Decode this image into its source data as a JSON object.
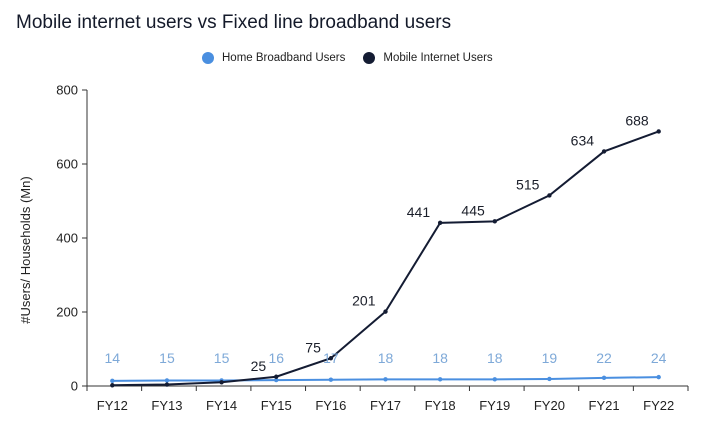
{
  "chart_data": {
    "type": "line",
    "title": "Mobile internet users vs Fixed line broadband users",
    "xlabel": "",
    "ylabel": "#Users/ Households (Mn)",
    "categories": [
      "FY12",
      "FY13",
      "FY14",
      "FY15",
      "FY16",
      "FY17",
      "FY18",
      "FY19",
      "FY20",
      "FY21",
      "FY22"
    ],
    "ylim": [
      0,
      800
    ],
    "yticks": [
      0,
      200,
      400,
      600,
      800
    ],
    "grid": false,
    "legend_position": "top-center",
    "series": [
      {
        "name": "Home Broadband Users",
        "color": "#4a8fe0",
        "label_color": "#7ea9d8",
        "values": [
          14,
          15,
          15,
          16,
          17,
          18,
          18,
          18,
          19,
          22,
          24
        ],
        "labels": [
          "14",
          "15",
          "15",
          "16",
          "17",
          "18",
          "18",
          "18",
          "19",
          "22",
          "24"
        ]
      },
      {
        "name": "Mobile Internet Users",
        "color": "#141c33",
        "label_color": "#1b1f2a",
        "values": [
          2,
          4,
          10,
          25,
          75,
          201,
          441,
          445,
          515,
          634,
          688
        ],
        "labels": [
          "",
          "",
          "",
          "25",
          "75",
          "201",
          "441",
          "445",
          "515",
          "634",
          "688"
        ]
      }
    ]
  }
}
